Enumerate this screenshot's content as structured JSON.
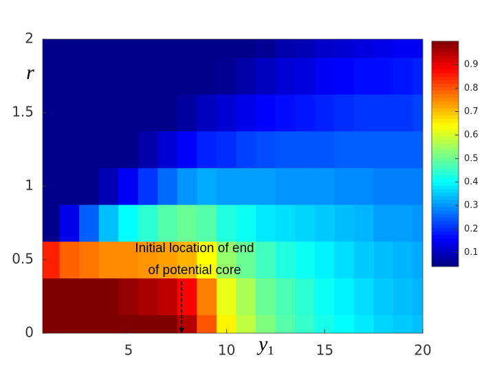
{
  "chart_data": {
    "type": "heatmap",
    "xlabel": "y",
    "xlabel_sub": "1",
    "ylabel": "r",
    "x": [
      1,
      2,
      3,
      4,
      5,
      6,
      7,
      8,
      9,
      10,
      11,
      12,
      13,
      14,
      15,
      16,
      17,
      18,
      19,
      20
    ],
    "y": [
      0,
      0.25,
      0.5,
      0.75,
      1,
      1.25,
      1.5,
      1.75,
      2
    ],
    "z": [
      [
        1,
        1,
        1,
        1,
        1,
        1,
        1,
        0.95,
        0.8,
        0.65,
        0.58,
        0.52,
        0.48,
        0.45,
        0.42,
        0.4,
        0.38,
        0.36,
        0.35,
        0.34
      ],
      [
        1,
        1,
        1,
        1,
        0.98,
        0.96,
        0.94,
        0.88,
        0.76,
        0.62,
        0.56,
        0.5,
        0.47,
        0.44,
        0.41,
        0.39,
        0.37,
        0.35,
        0.34,
        0.33
      ],
      [
        0.85,
        0.79,
        0.77,
        0.75,
        0.75,
        0.74,
        0.73,
        0.71,
        0.64,
        0.54,
        0.5,
        0.46,
        0.43,
        0.41,
        0.39,
        0.37,
        0.35,
        0.34,
        0.33,
        0.32
      ],
      [
        0.05,
        0.14,
        0.25,
        0.34,
        0.4,
        0.44,
        0.48,
        0.5,
        0.48,
        0.43,
        0.41,
        0.38,
        0.37,
        0.36,
        0.35,
        0.34,
        0.33,
        0.31,
        0.31,
        0.3
      ],
      [
        0.05,
        0.05,
        0.05,
        0.09,
        0.15,
        0.21,
        0.26,
        0.3,
        0.32,
        0.31,
        0.31,
        0.31,
        0.3,
        0.3,
        0.3,
        0.29,
        0.29,
        0.28,
        0.28,
        0.28
      ],
      [
        0.05,
        0.05,
        0.05,
        0.05,
        0.05,
        0.08,
        0.12,
        0.16,
        0.19,
        0.2,
        0.22,
        0.23,
        0.24,
        0.24,
        0.24,
        0.25,
        0.25,
        0.25,
        0.25,
        0.25
      ],
      [
        0.05,
        0.05,
        0.05,
        0.05,
        0.05,
        0.05,
        0.05,
        0.07,
        0.1,
        0.12,
        0.14,
        0.16,
        0.17,
        0.18,
        0.19,
        0.2,
        0.21,
        0.21,
        0.21,
        0.22
      ],
      [
        0.05,
        0.05,
        0.05,
        0.05,
        0.05,
        0.05,
        0.05,
        0.05,
        0.05,
        0.06,
        0.08,
        0.1,
        0.12,
        0.13,
        0.15,
        0.16,
        0.17,
        0.17,
        0.18,
        0.19
      ],
      [
        0.05,
        0.05,
        0.05,
        0.05,
        0.05,
        0.05,
        0.05,
        0.05,
        0.05,
        0.05,
        0.05,
        0.06,
        0.08,
        0.09,
        0.11,
        0.12,
        0.13,
        0.14,
        0.15,
        0.15
      ]
    ],
    "colormap": "jet",
    "clim": [
      0.04,
      1
    ],
    "cticks": [
      0.1,
      0.2,
      0.3,
      0.4,
      0.5,
      0.6,
      0.7,
      0.8,
      0.9
    ],
    "xlim": [
      0.62,
      20
    ],
    "ylim": [
      0,
      2
    ],
    "xticks": [
      5,
      10,
      15,
      20
    ],
    "yticks": [
      0,
      0.5,
      1,
      1.5,
      2
    ],
    "annotation": {
      "text": [
        "Initial location of end",
        "of potential core"
      ],
      "x": 7.7
    }
  }
}
